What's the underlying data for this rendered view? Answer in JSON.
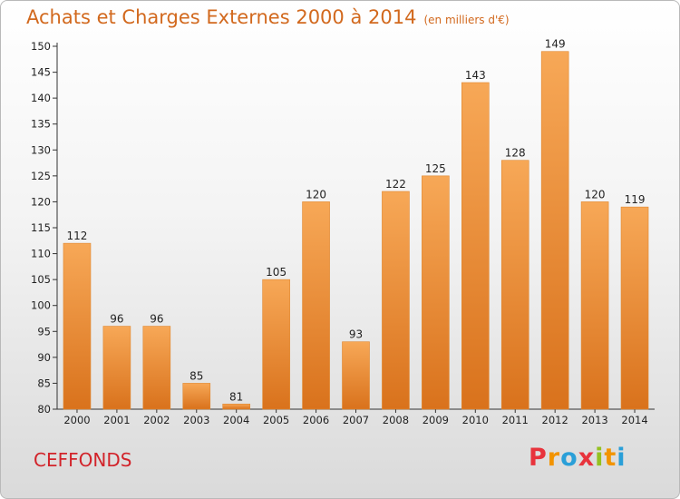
{
  "header": {
    "title": "Achats et Charges Externes 2000 à 2014",
    "subtitle": "(en milliers d'€)"
  },
  "footer": {
    "place": "CEFFONDS",
    "logo_letters": [
      "P",
      "r",
      "o",
      "x",
      "i",
      "t",
      "i"
    ],
    "logo_colors": [
      "#e8333c",
      "#f29400",
      "#2a9fd8",
      "#e8333c",
      "#94c11f",
      "#f29400",
      "#2a9fd8"
    ]
  },
  "chart_data": {
    "type": "bar",
    "title": "Achats et Charges Externes 2000 à 2014",
    "subtitle": "(en milliers d'€)",
    "categories": [
      "2000",
      "2001",
      "2002",
      "2003",
      "2004",
      "2005",
      "2006",
      "2007",
      "2008",
      "2009",
      "2010",
      "2011",
      "2012",
      "2013",
      "2014"
    ],
    "values": [
      112,
      96,
      96,
      85,
      81,
      105,
      120,
      93,
      122,
      125,
      143,
      128,
      149,
      120,
      119
    ],
    "ylim": [
      80,
      150
    ],
    "yticks": [
      80,
      85,
      90,
      95,
      100,
      105,
      110,
      115,
      120,
      125,
      130,
      135,
      140,
      145,
      150
    ],
    "bar_color_top": "#f7a857",
    "bar_color_bottom": "#d9721c",
    "grid": false,
    "xlabel": "",
    "ylabel": ""
  }
}
